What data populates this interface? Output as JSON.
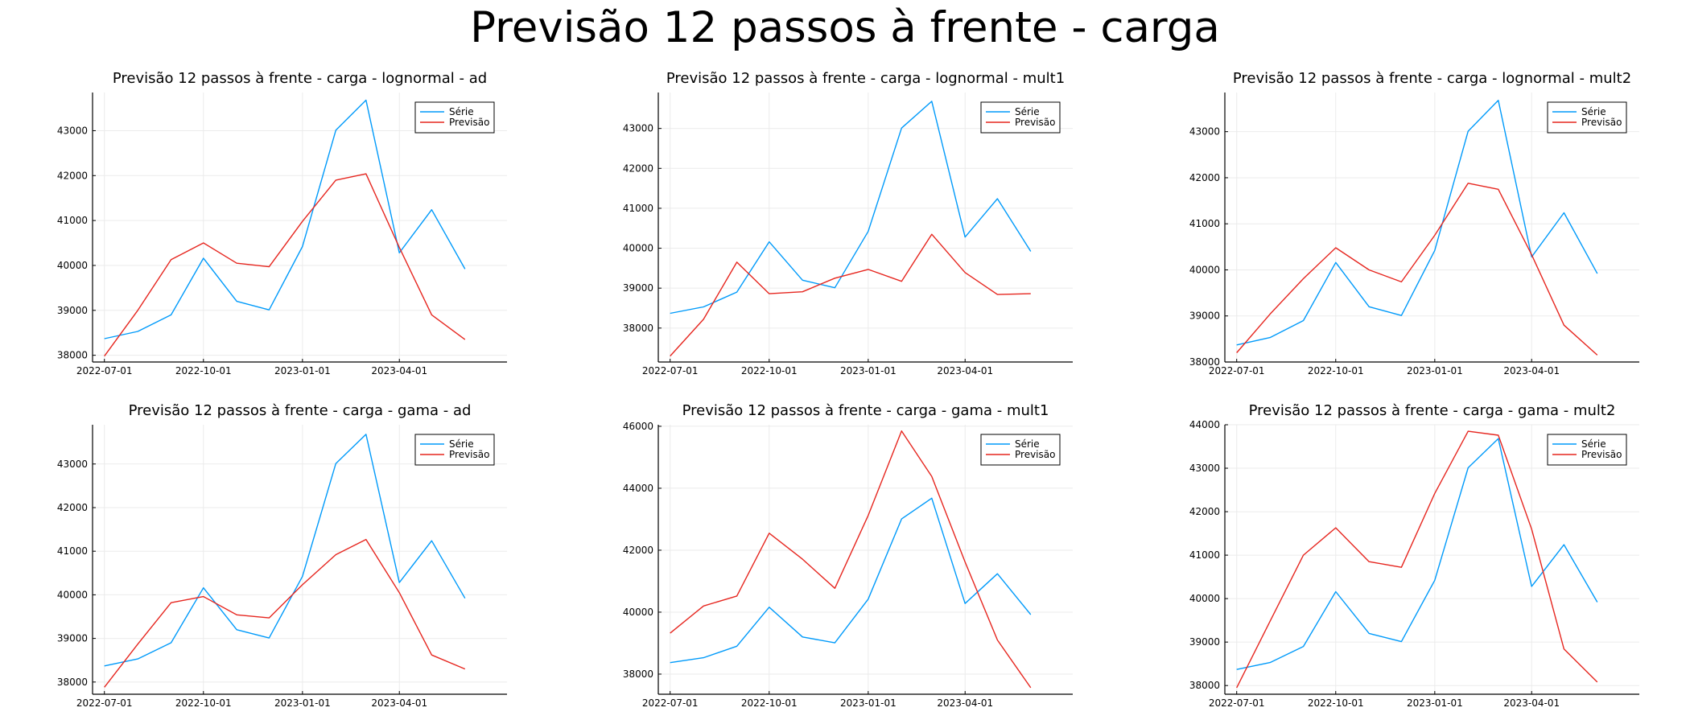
{
  "figure": {
    "title": "Previsão 12 passos à frente - carga"
  },
  "colors": {
    "serie": "#009AFA",
    "previsao": "#E6261F",
    "axis": "#000000",
    "grid": "#EBEBEB"
  },
  "chart_data": [
    {
      "type": "line",
      "title": "Previsão 12 passos à frente - carga - lognormal - ad",
      "xlabel": "",
      "ylabel": "",
      "x": [
        "2022-07-01",
        "2022-08-01",
        "2022-09-01",
        "2022-10-01",
        "2022-11-01",
        "2022-12-01",
        "2023-01-01",
        "2023-02-01",
        "2023-03-01",
        "2023-04-01",
        "2023-05-01",
        "2023-06-01"
      ],
      "xticks": [
        "2022-07-01",
        "2022-10-01",
        "2023-01-01",
        "2023-04-01"
      ],
      "xlim": [
        "2022-06-20",
        "2023-07-10"
      ],
      "ylim": [
        37850,
        43850
      ],
      "yticks": [
        38000,
        39000,
        40000,
        41000,
        42000,
        43000
      ],
      "grid": true,
      "legend": "top-right",
      "series": [
        {
          "name": "Série",
          "values": [
            38370,
            38530,
            38900,
            40160,
            39200,
            39010,
            40420,
            43010,
            43680,
            40280,
            41240,
            39920
          ]
        },
        {
          "name": "Previsão",
          "values": [
            37980,
            39000,
            40130,
            40500,
            40050,
            39970,
            40980,
            41900,
            42040,
            40400,
            38900,
            38350
          ]
        }
      ]
    },
    {
      "type": "line",
      "title": "Previsão 12 passos à frente - carga - lognormal - mult1",
      "xlabel": "",
      "ylabel": "",
      "x": [
        "2022-07-01",
        "2022-08-01",
        "2022-09-01",
        "2022-10-01",
        "2022-11-01",
        "2022-12-01",
        "2023-01-01",
        "2023-02-01",
        "2023-03-01",
        "2023-04-01",
        "2023-05-01",
        "2023-06-01"
      ],
      "xticks": [
        "2022-07-01",
        "2022-10-01",
        "2023-01-01",
        "2023-04-01"
      ],
      "xlim": [
        "2022-06-20",
        "2023-07-10"
      ],
      "ylim": [
        37150,
        43900
      ],
      "yticks": [
        38000,
        39000,
        40000,
        41000,
        42000,
        43000
      ],
      "grid": true,
      "legend": "top-right",
      "series": [
        {
          "name": "Série",
          "values": [
            38370,
            38530,
            38900,
            40160,
            39200,
            39010,
            40420,
            43010,
            43680,
            40280,
            41240,
            39920
          ]
        },
        {
          "name": "Previsão",
          "values": [
            37300,
            38220,
            39650,
            38860,
            38910,
            39250,
            39470,
            39170,
            40350,
            39390,
            38840,
            38860
          ]
        }
      ]
    },
    {
      "type": "line",
      "title": "Previsão 12 passos à frente - carga - lognormal - mult2",
      "xlabel": "",
      "ylabel": "",
      "x": [
        "2022-07-01",
        "2022-08-01",
        "2022-09-01",
        "2022-10-01",
        "2022-11-01",
        "2022-12-01",
        "2023-01-01",
        "2023-02-01",
        "2023-03-01",
        "2023-04-01",
        "2023-05-01",
        "2023-06-01"
      ],
      "xticks": [
        "2022-07-01",
        "2022-10-01",
        "2023-01-01",
        "2023-04-01"
      ],
      "xlim": [
        "2022-06-20",
        "2023-07-10"
      ],
      "ylim": [
        38000,
        43850
      ],
      "yticks": [
        38000,
        39000,
        40000,
        41000,
        42000,
        43000
      ],
      "grid": true,
      "legend": "top-right",
      "series": [
        {
          "name": "Série",
          "values": [
            38370,
            38530,
            38900,
            40160,
            39200,
            39010,
            40420,
            43010,
            43680,
            40280,
            41240,
            39920
          ]
        },
        {
          "name": "Previsão",
          "values": [
            38200,
            39040,
            39810,
            40480,
            40000,
            39740,
            40750,
            41880,
            41750,
            40330,
            38800,
            38150
          ]
        }
      ]
    },
    {
      "type": "line",
      "title": "Previsão 12 passos à frente - carga - gama - ad",
      "xlabel": "",
      "ylabel": "",
      "x": [
        "2022-07-01",
        "2022-08-01",
        "2022-09-01",
        "2022-10-01",
        "2022-11-01",
        "2022-12-01",
        "2023-01-01",
        "2023-02-01",
        "2023-03-01",
        "2023-04-01",
        "2023-05-01",
        "2023-06-01"
      ],
      "xticks": [
        "2022-07-01",
        "2022-10-01",
        "2023-01-01",
        "2023-04-01"
      ],
      "xlim": [
        "2022-06-20",
        "2023-07-10"
      ],
      "ylim": [
        37720,
        43900
      ],
      "yticks": [
        38000,
        39000,
        40000,
        41000,
        42000,
        43000
      ],
      "grid": true,
      "legend": "top-right",
      "series": [
        {
          "name": "Série",
          "values": [
            38370,
            38530,
            38900,
            40160,
            39200,
            39010,
            40420,
            43010,
            43680,
            40280,
            41240,
            39920
          ]
        },
        {
          "name": "Previsão",
          "values": [
            37880,
            38870,
            39820,
            39960,
            39540,
            39470,
            40230,
            40920,
            41270,
            40050,
            38620,
            38300
          ]
        }
      ]
    },
    {
      "type": "line",
      "title": "Previsão 12 passos à frente - carga - gama - mult1",
      "xlabel": "",
      "ylabel": "",
      "x": [
        "2022-07-01",
        "2022-08-01",
        "2022-09-01",
        "2022-10-01",
        "2022-11-01",
        "2022-12-01",
        "2023-01-01",
        "2023-02-01",
        "2023-03-01",
        "2023-04-01",
        "2023-05-01",
        "2023-06-01"
      ],
      "xticks": [
        "2022-07-01",
        "2022-10-01",
        "2023-01-01",
        "2023-04-01"
      ],
      "xlim": [
        "2022-06-20",
        "2023-07-10"
      ],
      "ylim": [
        37350,
        46050
      ],
      "yticks": [
        38000,
        40000,
        42000,
        44000,
        46000
      ],
      "grid": true,
      "legend": "top-right",
      "series": [
        {
          "name": "Série",
          "values": [
            38370,
            38530,
            38900,
            40160,
            39200,
            39010,
            40420,
            43010,
            43680,
            40280,
            41240,
            39920
          ]
        },
        {
          "name": "Previsão",
          "values": [
            39320,
            40200,
            40520,
            42550,
            41710,
            40770,
            43120,
            45850,
            44380,
            41620,
            39100,
            37560
          ]
        }
      ]
    },
    {
      "type": "line",
      "title": "Previsão 12 passos à frente - carga - gama - mult2",
      "xlabel": "",
      "ylabel": "",
      "x": [
        "2022-07-01",
        "2022-08-01",
        "2022-09-01",
        "2022-10-01",
        "2022-11-01",
        "2022-12-01",
        "2023-01-01",
        "2023-02-01",
        "2023-03-01",
        "2023-04-01",
        "2023-05-01",
        "2023-06-01"
      ],
      "xticks": [
        "2022-07-01",
        "2022-10-01",
        "2023-01-01",
        "2023-04-01"
      ],
      "xlim": [
        "2022-06-20",
        "2023-07-10"
      ],
      "ylim": [
        37800,
        44000
      ],
      "yticks": [
        38000,
        39000,
        40000,
        41000,
        42000,
        43000,
        44000
      ],
      "grid": true,
      "legend": "top-right",
      "series": [
        {
          "name": "Série",
          "values": [
            38370,
            38530,
            38900,
            40160,
            39200,
            39010,
            40420,
            43010,
            43680,
            40280,
            41240,
            39920
          ]
        },
        {
          "name": "Previsão",
          "values": [
            37950,
            39480,
            41000,
            41630,
            40850,
            40720,
            42420,
            43850,
            43760,
            41600,
            38840,
            38080
          ]
        }
      ]
    }
  ]
}
